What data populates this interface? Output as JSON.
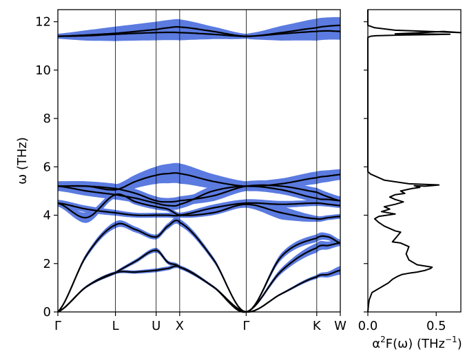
{
  "chart_data": [
    {
      "type": "line",
      "title": "",
      "ylabel": "ω (THz)",
      "xlabel": "",
      "ylim": [
        0,
        12.5
      ],
      "yticks": [
        0,
        2,
        4,
        6,
        8,
        10,
        12
      ],
      "kpoints": [
        {
          "label": "Γ",
          "x": 0.0
        },
        {
          "label": "L",
          "x": 0.866
        },
        {
          "label": "U",
          "x": 1.478
        },
        {
          "label": "X",
          "x": 1.832
        },
        {
          "label": "Γ",
          "x": 2.832
        },
        {
          "label": "K",
          "x": 3.893
        },
        {
          "label": "W",
          "x": 4.247
        }
      ],
      "band_color": "#000000",
      "fatband_color": "#5b7be0",
      "bands": [
        {
          "name": "",
          "x": [
            0,
            0.433,
            0.866,
            1.172,
            1.478,
            1.655,
            1.832,
            2.332,
            2.832,
            3.362,
            3.893,
            4.07,
            4.247
          ],
          "values": [
            0.0,
            1.05,
            1.62,
            1.65,
            1.72,
            1.8,
            1.85,
            1.05,
            0.0,
            0.75,
            1.45,
            1.55,
            1.72
          ],
          "width": [
            0.02,
            0.05,
            0.06,
            0.07,
            0.08,
            0.08,
            0.08,
            0.05,
            0.02,
            0.04,
            0.08,
            0.12,
            0.18
          ]
        },
        {
          "name": "",
          "x": [
            0,
            0.433,
            0.866,
            1.172,
            1.478,
            1.655,
            1.832,
            2.332,
            2.832,
            3.362,
            3.893,
            4.07,
            4.247
          ],
          "values": [
            0.0,
            1.05,
            1.62,
            2.1,
            2.55,
            2.05,
            1.85,
            1.05,
            0.0,
            1.7,
            2.65,
            2.75,
            2.85
          ],
          "width": [
            0.02,
            0.05,
            0.06,
            0.08,
            0.1,
            0.08,
            0.08,
            0.05,
            0.02,
            0.12,
            0.2,
            0.16,
            0.12
          ]
        },
        {
          "name": "",
          "x": [
            0,
            0.433,
            0.866,
            1.172,
            1.478,
            1.655,
            1.832,
            2.332,
            2.832,
            3.362,
            3.893,
            4.07,
            4.247
          ],
          "values": [
            0.0,
            2.35,
            3.6,
            3.4,
            3.1,
            3.55,
            3.7,
            2.2,
            0.0,
            2.3,
            3.05,
            3.1,
            2.85
          ],
          "width": [
            0.02,
            0.1,
            0.14,
            0.12,
            0.1,
            0.12,
            0.14,
            0.1,
            0.02,
            0.14,
            0.16,
            0.14,
            0.14
          ]
        },
        {
          "name": "",
          "x": [
            0,
            0.433,
            0.866,
            1.172,
            1.478,
            1.655,
            1.832,
            2.332,
            2.832,
            3.362,
            3.893,
            4.07,
            4.247
          ],
          "values": [
            4.5,
            3.9,
            4.85,
            4.55,
            4.35,
            4.25,
            4.0,
            4.1,
            4.45,
            4.1,
            3.85,
            3.9,
            3.95
          ],
          "width": [
            0.14,
            0.22,
            0.14,
            0.12,
            0.12,
            0.1,
            0.1,
            0.1,
            0.14,
            0.28,
            0.12,
            0.1,
            0.1
          ]
        },
        {
          "name": "",
          "x": [
            0,
            0.433,
            0.866,
            1.172,
            1.478,
            1.655,
            1.832,
            2.332,
            2.832,
            3.362,
            3.893,
            4.07,
            4.247
          ],
          "values": [
            4.5,
            4.25,
            4.1,
            4.0,
            4.0,
            4.0,
            4.0,
            4.3,
            4.5,
            4.45,
            4.5,
            4.45,
            4.4
          ],
          "width": [
            0.14,
            0.14,
            0.12,
            0.1,
            0.1,
            0.1,
            0.1,
            0.14,
            0.16,
            0.14,
            0.12,
            0.1,
            0.1
          ]
        },
        {
          "name": "",
          "x": [
            0,
            0.433,
            0.866,
            1.172,
            1.478,
            1.655,
            1.832,
            2.332,
            2.832,
            3.362,
            3.893,
            4.07,
            4.247
          ],
          "values": [
            5.2,
            5.0,
            4.85,
            4.7,
            4.5,
            4.4,
            4.45,
            5.0,
            5.2,
            5.05,
            4.7,
            4.65,
            4.6
          ],
          "width": [
            0.2,
            0.2,
            0.2,
            0.18,
            0.16,
            0.15,
            0.18,
            0.22,
            0.2,
            0.18,
            0.16,
            0.15,
            0.15
          ]
        },
        {
          "name": "",
          "x": [
            0,
            0.433,
            0.866,
            1.172,
            1.478,
            1.655,
            1.832,
            2.332,
            2.832,
            3.362,
            3.893,
            4.07,
            4.247
          ],
          "values": [
            5.2,
            5.2,
            5.1,
            4.9,
            4.6,
            4.55,
            4.6,
            4.8,
            5.2,
            5.2,
            4.95,
            4.75,
            4.6
          ],
          "width": [
            0.2,
            0.2,
            0.2,
            0.18,
            0.18,
            0.16,
            0.18,
            0.22,
            0.2,
            0.2,
            0.18,
            0.18,
            0.18
          ]
        },
        {
          "name": "",
          "x": [
            0,
            0.433,
            0.866,
            1.172,
            1.478,
            1.655,
            1.832,
            2.332,
            2.832,
            3.362,
            3.893,
            4.07,
            4.247
          ],
          "values": [
            5.2,
            5.2,
            5.05,
            5.4,
            5.65,
            5.72,
            5.72,
            5.4,
            5.2,
            5.3,
            5.55,
            5.62,
            5.68
          ],
          "width": [
            0.2,
            0.2,
            0.22,
            0.28,
            0.36,
            0.4,
            0.42,
            0.3,
            0.2,
            0.22,
            0.26,
            0.24,
            0.22
          ]
        },
        {
          "name": "",
          "x": [
            0,
            0.433,
            0.866,
            1.172,
            1.478,
            1.655,
            1.832,
            2.332,
            2.832,
            3.362,
            3.893,
            4.07,
            4.247
          ],
          "values": [
            11.4,
            11.42,
            11.48,
            11.52,
            11.55,
            11.56,
            11.55,
            11.48,
            11.4,
            11.5,
            11.6,
            11.62,
            11.6
          ],
          "width": [
            0.1,
            0.2,
            0.28,
            0.3,
            0.32,
            0.32,
            0.32,
            0.2,
            0.1,
            0.28,
            0.38,
            0.36,
            0.34
          ]
        },
        {
          "name": "",
          "x": [
            0,
            0.433,
            0.866,
            1.172,
            1.478,
            1.655,
            1.832,
            2.332,
            2.832,
            3.362,
            3.893,
            4.07,
            4.247
          ],
          "values": [
            11.4,
            11.45,
            11.52,
            11.6,
            11.68,
            11.75,
            11.78,
            11.6,
            11.4,
            11.55,
            11.75,
            11.82,
            11.85
          ],
          "width": [
            0.1,
            0.2,
            0.28,
            0.3,
            0.32,
            0.32,
            0.32,
            0.2,
            0.1,
            0.28,
            0.38,
            0.36,
            0.34
          ]
        }
      ]
    },
    {
      "type": "line",
      "title": "",
      "xlabel": "α²F(ω) (THz⁻¹)",
      "xlabel_parts": {
        "before_sup": "α",
        "sup1": "2",
        "middle": "F(ω) (THz",
        "sup2": "−1",
        "after": ")"
      },
      "ylabel": "",
      "xlim": [
        0,
        0.68
      ],
      "ylim": [
        0,
        12.5
      ],
      "xticks": [
        {
          "value": 0.0,
          "label": "0.0"
        },
        {
          "value": 0.5,
          "label": "0.5"
        }
      ],
      "line_color": "#000000",
      "x": [
        0.0,
        0.005,
        0.01,
        0.03,
        0.06,
        0.09,
        0.12,
        0.15,
        0.18,
        0.21,
        0.25,
        0.3,
        0.36,
        0.42,
        0.46,
        0.47,
        0.36,
        0.3,
        0.28,
        0.3,
        0.24,
        0.18,
        0.21,
        0.24,
        0.2,
        0.16,
        0.12,
        0.08,
        0.05,
        0.08,
        0.14,
        0.2,
        0.1,
        0.16,
        0.12,
        0.2,
        0.26,
        0.2,
        0.16,
        0.2,
        0.27,
        0.24,
        0.32,
        0.38,
        0.34,
        0.42,
        0.52,
        0.3,
        0.12,
        0.06,
        0.02,
        0.0,
        0.0,
        0.0,
        0.0,
        0.0,
        0.02,
        0.06,
        0.25,
        0.6,
        0.2,
        0.4,
        0.55,
        0.68,
        0.2,
        0.05,
        0.0,
        0.0
      ],
      "values": [
        0.0,
        0.3,
        0.5,
        0.8,
        0.9,
        1.0,
        1.1,
        1.2,
        1.35,
        1.45,
        1.55,
        1.6,
        1.65,
        1.72,
        1.8,
        1.85,
        1.95,
        2.15,
        2.4,
        2.7,
        2.85,
        2.9,
        3.1,
        3.3,
        3.35,
        3.45,
        3.55,
        3.7,
        3.85,
        3.95,
        4.0,
        4.05,
        4.15,
        4.25,
        4.35,
        4.45,
        4.55,
        4.65,
        4.75,
        4.85,
        4.9,
        5.0,
        5.1,
        5.15,
        5.22,
        5.2,
        5.25,
        5.3,
        5.45,
        5.6,
        5.7,
        5.8,
        6.0,
        11.2,
        11.3,
        11.35,
        11.4,
        11.42,
        11.45,
        11.48,
        11.5,
        11.55,
        11.6,
        11.55,
        11.65,
        11.75,
        11.85,
        12.5
      ]
    }
  ]
}
